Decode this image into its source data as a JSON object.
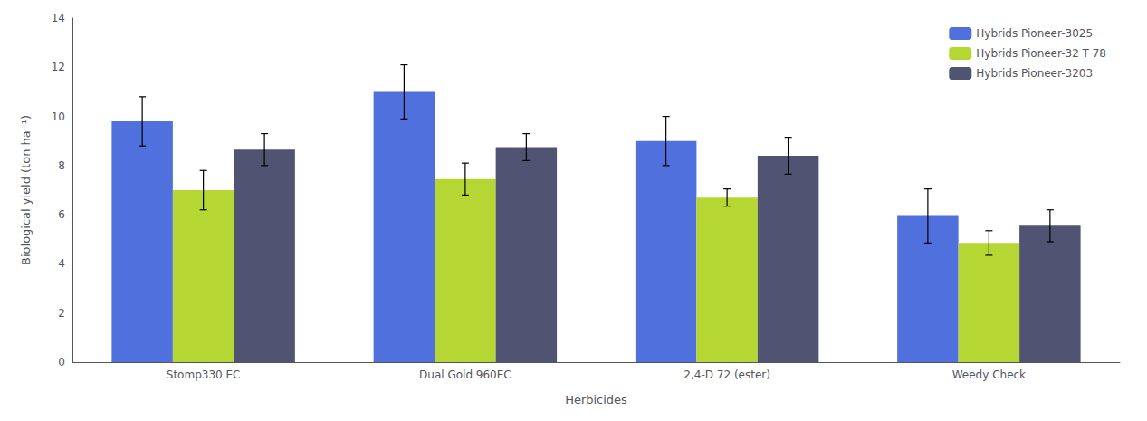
{
  "chart_data": {
    "type": "bar",
    "xlabel": "Herbicides",
    "ylabel": "Biological yield (ton ha⁻¹)",
    "categories": [
      "Stomp330 EC",
      "Dual Gold 960EC",
      "2,4-D 72 (ester)",
      "Weedy Check"
    ],
    "series": [
      {
        "name": "Hybrids Pioneer-3025",
        "values": [
          9.8,
          11.0,
          9.0,
          5.95
        ],
        "errors": [
          1.0,
          1.1,
          1.0,
          1.1
        ]
      },
      {
        "name": "Hybrids Pioneer-32 T 78",
        "values": [
          7.0,
          7.45,
          6.7,
          4.85
        ],
        "errors": [
          0.8,
          0.65,
          0.35,
          0.5
        ]
      },
      {
        "name": "Hybrids Pioneer-3203",
        "values": [
          8.65,
          8.75,
          8.4,
          5.55
        ],
        "errors": [
          0.65,
          0.55,
          0.75,
          0.65
        ]
      }
    ],
    "ylim": [
      0,
      14
    ],
    "yticks": [
      0,
      2,
      4,
      6,
      8,
      10,
      12,
      14
    ],
    "grid": false,
    "legend": "upper right"
  }
}
